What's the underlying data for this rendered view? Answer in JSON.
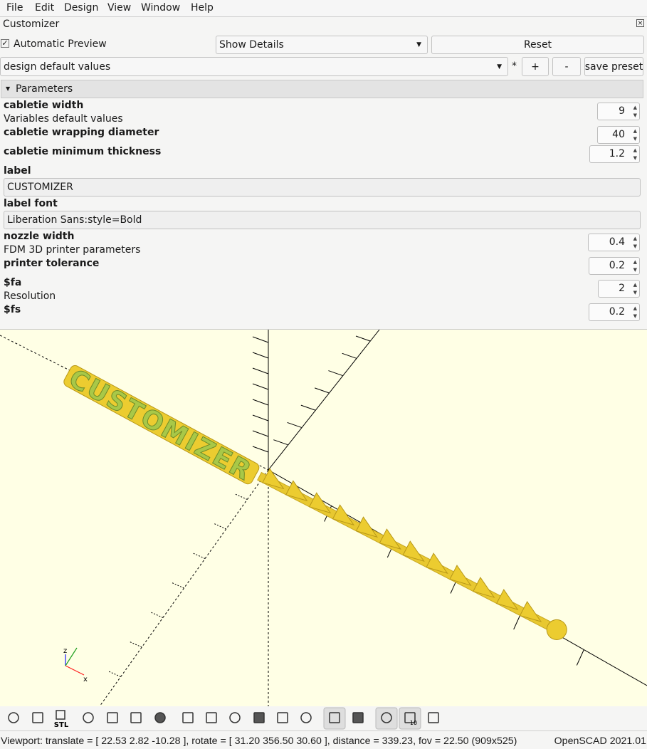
{
  "menu": [
    "File",
    "Edit",
    "Design",
    "View",
    "Window",
    "Help"
  ],
  "customizer": {
    "title": "Customizer",
    "automatic_preview": "Automatic Preview",
    "details": "Show Details",
    "reset": "Reset",
    "preset": "design default values",
    "modified": "*",
    "add": "+",
    "remove": "-",
    "save_preset": "save preset",
    "group": "Parameters",
    "parameters": [
      {
        "label": "cabletie width",
        "description": "Variables default values",
        "value": 9
      },
      {
        "label": "cabletie wrapping diameter",
        "value": 40
      },
      {
        "label": "cabletie minimum thickness",
        "value": 1.2
      },
      {
        "label": "label",
        "value": "CUSTOMIZER"
      },
      {
        "label": "label font",
        "value": "Liberation Sans:style=Bold"
      },
      {
        "label": "nozzle width",
        "description": "FDM 3D printer parameters",
        "value": 0.4
      },
      {
        "label": "printer tolerance",
        "value": 0.2
      },
      {
        "label": "$fa",
        "description": "Resolution",
        "value": 2
      },
      {
        "label": "$fs",
        "value": 0.2
      }
    ]
  },
  "viewport": {
    "model_text": "CUSTOMIZER",
    "axis_labels": [
      "z",
      "x"
    ]
  },
  "toolbar": {
    "stl": "STL",
    "grid_scale": "10"
  },
  "status": {
    "viewport": "Viewport: translate = [ 22.53 2.82 -10.28 ], rotate = [ 31.20 356.50 30.60 ], distance = 339.23, fov = 22.50 (909x525)",
    "version": "OpenSCAD 2021.01"
  }
}
